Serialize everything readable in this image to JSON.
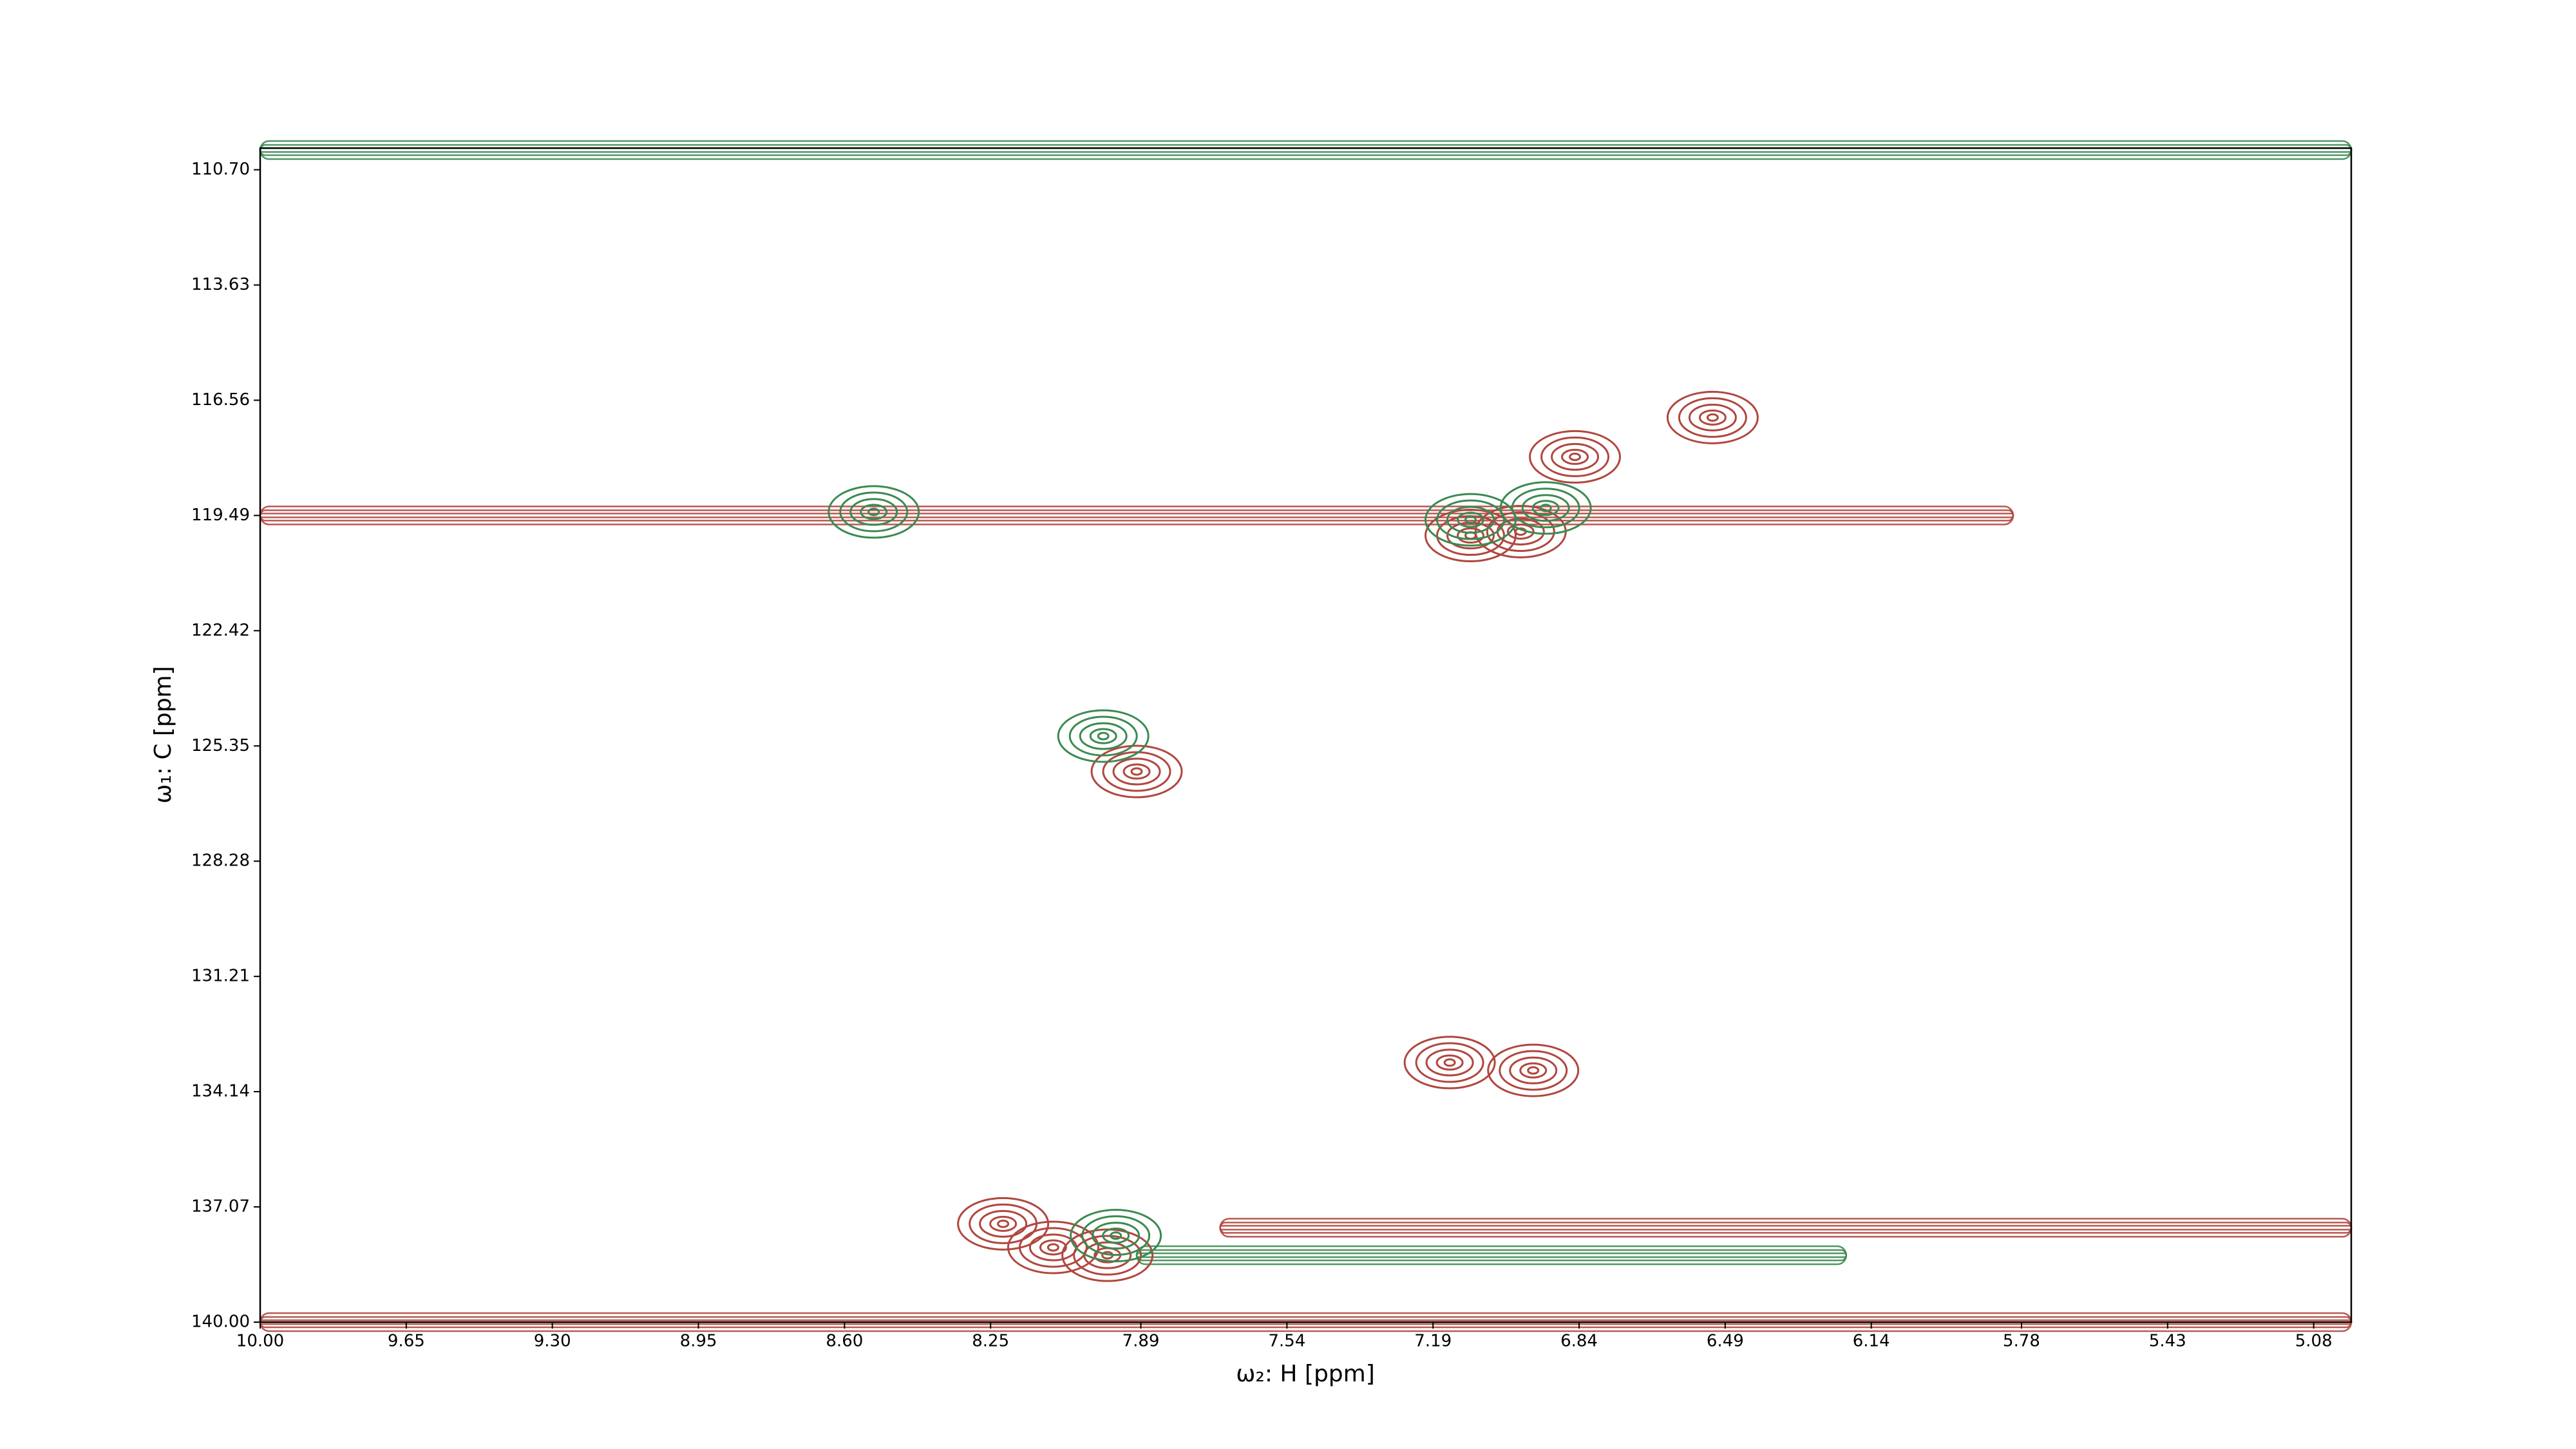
{
  "chart_data": {
    "type": "contour",
    "x_label": "ω₂: H [ppm]",
    "y_label": "ω₁: C [ppm]",
    "xlim": [
      10.0,
      4.99
    ],
    "ylim": [
      110.15,
      140.0
    ],
    "xticks": [
      {
        "value": 10.0,
        "label": "10.00"
      },
      {
        "value": 9.65,
        "label": "9.65"
      },
      {
        "value": 9.3,
        "label": "9.30"
      },
      {
        "value": 8.95,
        "label": "8.95"
      },
      {
        "value": 8.6,
        "label": "8.60"
      },
      {
        "value": 8.25,
        "label": "8.25"
      },
      {
        "value": 7.89,
        "label": "7.89"
      },
      {
        "value": 7.54,
        "label": "7.54"
      },
      {
        "value": 7.19,
        "label": "7.19"
      },
      {
        "value": 6.84,
        "label": "6.84"
      },
      {
        "value": 6.49,
        "label": "6.49"
      },
      {
        "value": 6.14,
        "label": "6.14"
      },
      {
        "value": 5.78,
        "label": "5.78"
      },
      {
        "value": 5.43,
        "label": "5.43"
      },
      {
        "value": 5.08,
        "label": "5.08"
      }
    ],
    "yticks": [
      {
        "value": 110.7,
        "label": "110.70"
      },
      {
        "value": 113.63,
        "label": "113.63"
      },
      {
        "value": 116.56,
        "label": "116.56"
      },
      {
        "value": 119.49,
        "label": "119.49"
      },
      {
        "value": 122.42,
        "label": "122.42"
      },
      {
        "value": 125.35,
        "label": "125.35"
      },
      {
        "value": 128.28,
        "label": "128.28"
      },
      {
        "value": 131.21,
        "label": "131.21"
      },
      {
        "value": 134.14,
        "label": "134.14"
      },
      {
        "value": 137.07,
        "label": "137.07"
      },
      {
        "value": 140.0,
        "label": "140.00"
      }
    ],
    "peaks_positive": {
      "color": "#b0473f",
      "x": [
        7.1,
        6.98,
        7.15,
        6.95,
        8.22,
        8.1,
        7.97,
        6.52,
        7.9,
        6.85
      ],
      "y": [
        120.0,
        119.9,
        133.4,
        133.6,
        137.5,
        138.1,
        138.3,
        117.0,
        126.0,
        118.0
      ]
    },
    "peaks_negative": {
      "color": "#3b8a50",
      "x": [
        7.95,
        7.1,
        8.53,
        7.98,
        6.92
      ],
      "y": [
        137.8,
        119.6,
        119.4,
        125.1,
        119.3
      ]
    },
    "ridges": {
      "y": [
        119.49,
        140.0,
        138.3,
        110.2,
        137.6
      ],
      "x_start": [
        10.0,
        10.0,
        7.9,
        10.0,
        7.7
      ],
      "x_end": [
        5.8,
        4.99,
        6.2,
        4.99,
        4.99
      ],
      "color": [
        "#b0473f",
        "#b0473f",
        "#3b8a50",
        "#3b8a50",
        "#b0473f"
      ]
    }
  }
}
